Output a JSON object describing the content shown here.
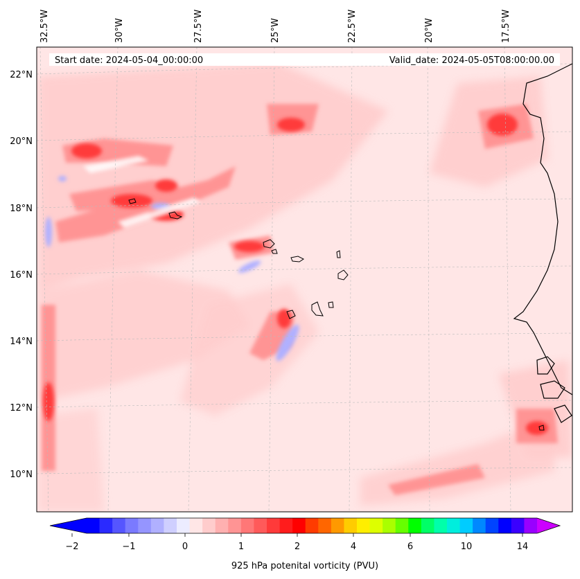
{
  "header": {
    "start_date": "Start date: 2024-05-04_00:00:00",
    "valid_date": "Valid_date: 2024-05-05T08:00:00.00"
  },
  "map": {
    "projection": "lambert-conformal",
    "gridlines": true,
    "longitude_labels": [
      "32.5°W",
      "30°W",
      "27.5°W",
      "25°W",
      "22.5°W",
      "20°W",
      "17.5°W"
    ],
    "latitude_labels": [
      "22°N",
      "20°N",
      "18°N",
      "16°N",
      "14°N",
      "12°N",
      "10°N"
    ],
    "background_color": "#ffe6e6",
    "coastline_color": "#000000"
  },
  "colorbar": {
    "title": "925 hPa potenital vorticity (PVU)",
    "tick_labels": [
      "−2",
      "−1",
      "0",
      "1",
      "2",
      "4",
      "6",
      "10",
      "14"
    ],
    "colors": [
      "#0000ff",
      "#2a2aff",
      "#5555ff",
      "#7a7aff",
      "#9595ff",
      "#b0b0ff",
      "#cfcfff",
      "#ececff",
      "#ffe6e6",
      "#ffcccc",
      "#ffb0b0",
      "#ff9494",
      "#ff7777",
      "#ff5a5a",
      "#ff3a3a",
      "#ff1c1c",
      "#ff0000",
      "#ff3b00",
      "#ff6600",
      "#ff9900",
      "#ffcc00",
      "#ffee00",
      "#ddff00",
      "#aaff00",
      "#66ff00",
      "#00ff00",
      "#00ff66",
      "#00ffaa",
      "#00eedd",
      "#00ccff",
      "#0088ff",
      "#0044ff",
      "#0000ff",
      "#3a00ff",
      "#9900ff"
    ],
    "extend_left_color": "#0000ff",
    "extend_right_color": "#cc00ff"
  }
}
